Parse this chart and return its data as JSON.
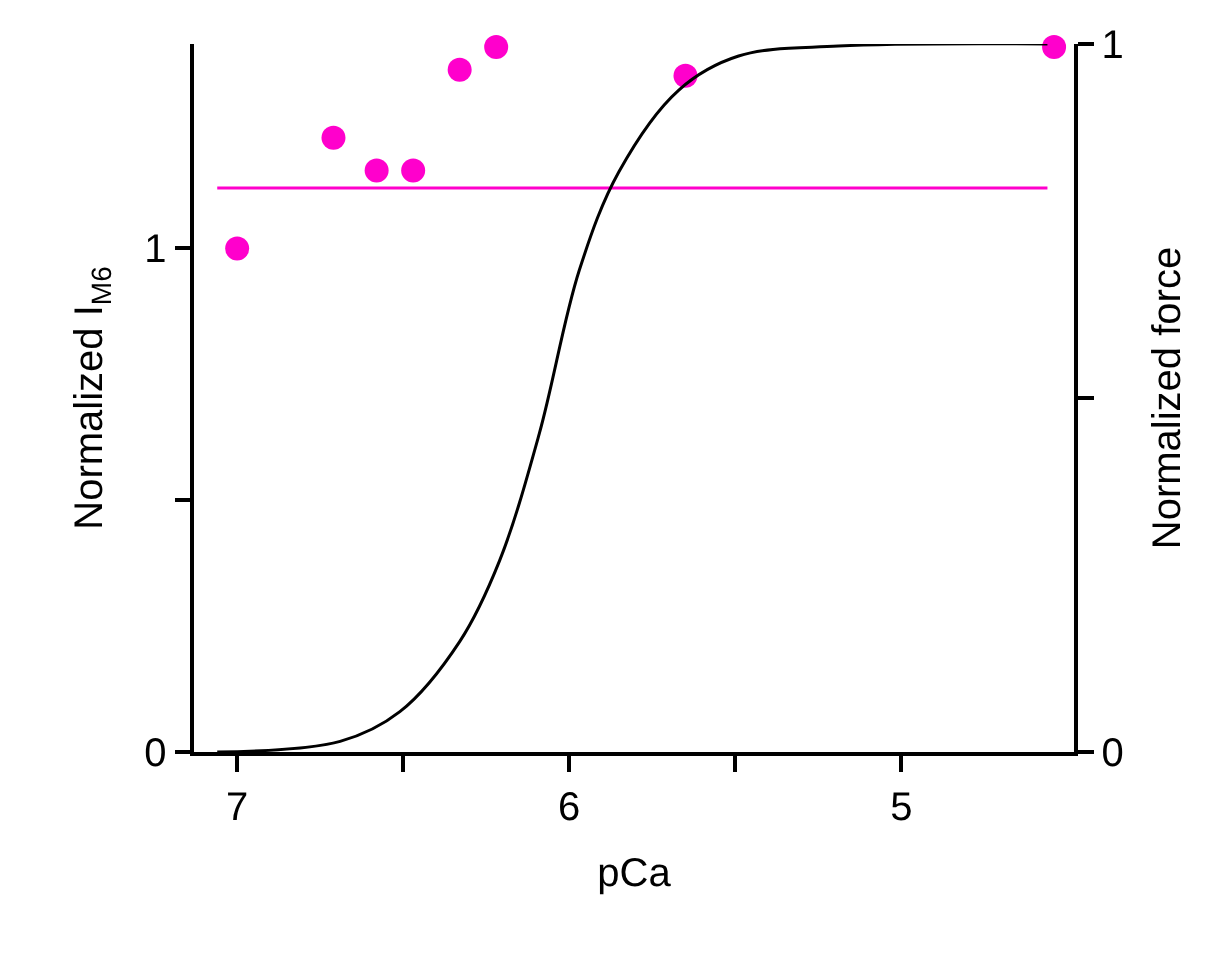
{
  "chart_data": {
    "type": "scatter",
    "xlabel": "pCa",
    "ylabel": "Normalized I$_{M6}$",
    "y2label": "Normalized force",
    "xlim": [
      7.13,
      4.48
    ],
    "xticks": [
      7,
      {
        "value": 6.5,
        "label": null
      },
      6,
      {
        "value": 5.5,
        "label": null
      },
      5
    ],
    "ylim": [
      0,
      1.406
    ],
    "yticks": [
      0,
      {
        "value": 0.5,
        "label": null
      },
      1
    ],
    "y2lim": [
      0,
      1
    ],
    "y2ticks": [
      0,
      {
        "value": 0.5,
        "label": null
      },
      1
    ],
    "marker": "circle",
    "series": [
      {
        "type": "line",
        "axis": "y2",
        "color": "#000000",
        "marker": "none",
        "x": [
          7.06,
          6.69,
          6.51,
          6.33,
          6.21,
          6.09,
          5.97,
          5.85,
          5.67,
          5.49,
          5.19,
          4.56
        ],
        "values": [
          0,
          0.015,
          0.057,
          0.156,
          0.27,
          0.45,
          0.68,
          0.82,
          0.935,
          0.983,
          0.997,
          1
        ]
      },
      {
        "type": "line",
        "axis": "y",
        "color": "#ff00cc",
        "marker": "none",
        "x": [
          7.06,
          4.56
        ],
        "values": [
          1.12,
          1.12
        ]
      },
      {
        "axis": "y",
        "color": "#ff00cc",
        "x": [
          7.0,
          6.71,
          6.58,
          6.47,
          6.33,
          6.22,
          5.65,
          4.54
        ],
        "values": [
          1.0,
          1.22,
          1.155,
          1.155,
          1.355,
          1.4,
          1.343,
          1.4
        ]
      }
    ]
  }
}
